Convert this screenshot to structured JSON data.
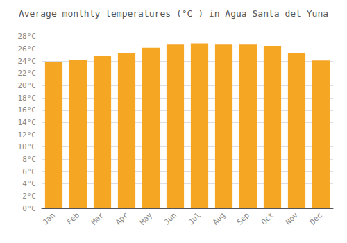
{
  "chart_data": {
    "type": "bar",
    "title": "Average monthly temperatures (°C ) in Agua Santa del Yuna",
    "categories": [
      "Jan",
      "Feb",
      "Mar",
      "Apr",
      "May",
      "Jun",
      "Jul",
      "Aug",
      "Sep",
      "Oct",
      "Nov",
      "Dec"
    ],
    "values": [
      23.9,
      24.2,
      24.8,
      25.3,
      26.2,
      26.7,
      26.9,
      26.7,
      26.7,
      26.5,
      25.3,
      24.1
    ],
    "color": "#F5A623",
    "ylim": [
      0,
      29
    ],
    "yticks": [
      {
        "value": 0,
        "label": "0°C"
      },
      {
        "value": 2,
        "label": "2°C"
      },
      {
        "value": 4,
        "label": "4°C"
      },
      {
        "value": 6,
        "label": "6°C"
      },
      {
        "value": 8,
        "label": "8°C"
      },
      {
        "value": 10,
        "label": "10°C"
      },
      {
        "value": 12,
        "label": "12°C"
      },
      {
        "value": 14,
        "label": "14°C"
      },
      {
        "value": 16,
        "label": "16°C"
      },
      {
        "value": 18,
        "label": "18°C"
      },
      {
        "value": 20,
        "label": "20°C"
      },
      {
        "value": 22,
        "label": "22°C"
      },
      {
        "value": 24,
        "label": "24°C"
      },
      {
        "value": 26,
        "label": "26°C"
      },
      {
        "value": 28,
        "label": "28°C"
      }
    ],
    "grid": true
  }
}
